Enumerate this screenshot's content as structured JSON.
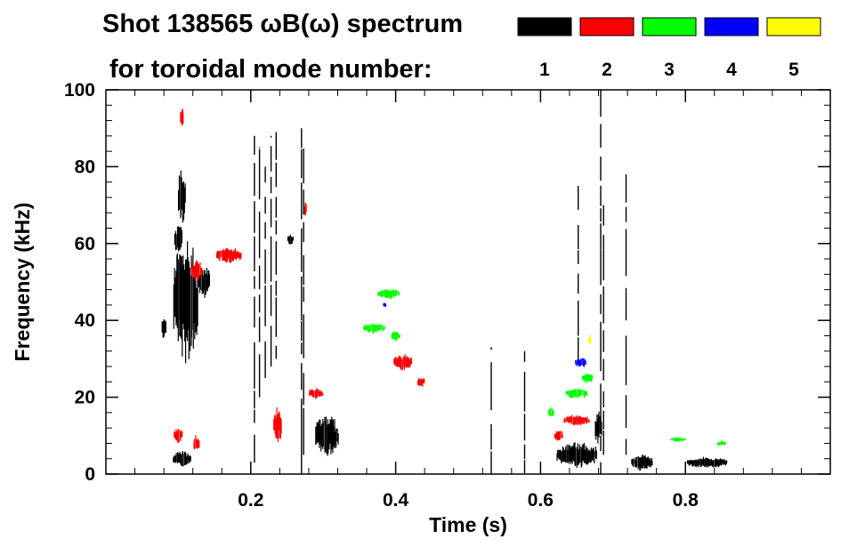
{
  "chart_data": {
    "type": "heatmap",
    "title_line1": "Shot 138565 ωB(ω) spectrum",
    "title_line2": "for toroidal mode number:",
    "xlabel": "Time (s)",
    "ylabel": "Frequency (kHz)",
    "xlim": [
      0.0,
      1.0
    ],
    "ylim": [
      0,
      100
    ],
    "x_ticks": [
      0.2,
      0.4,
      0.6,
      0.8
    ],
    "x_tick_labels": [
      "0.2",
      "0.4",
      "0.6",
      "0.8"
    ],
    "y_ticks": [
      0,
      20,
      40,
      60,
      80,
      100
    ],
    "y_tick_labels": [
      "0",
      "20",
      "40",
      "60",
      "80",
      "100"
    ],
    "grid": false,
    "legend_position": "top-right",
    "modes": [
      {
        "n": "1",
        "color": "#000000"
      },
      {
        "n": "2",
        "color": "#ff0000"
      },
      {
        "n": "3",
        "color": "#00ff00"
      },
      {
        "n": "4",
        "color": "#0000ff"
      },
      {
        "n": "5",
        "color": "#ffff00"
      }
    ],
    "blobs": [
      {
        "mode": "1",
        "t": 0.08,
        "f": 38,
        "dt": 0.006,
        "df": 4
      },
      {
        "mode": "1",
        "t": 0.11,
        "f": 45,
        "dt": 0.034,
        "df": 22
      },
      {
        "mode": "1",
        "t": 0.135,
        "f": 50,
        "dt": 0.018,
        "df": 6
      },
      {
        "mode": "1",
        "t": 0.1,
        "f": 61,
        "dt": 0.01,
        "df": 6
      },
      {
        "mode": "1",
        "t": 0.105,
        "f": 72,
        "dt": 0.01,
        "df": 10
      },
      {
        "mode": "1",
        "t": 0.105,
        "f": 4,
        "dt": 0.025,
        "df": 3
      },
      {
        "mode": "1",
        "t": 0.255,
        "f": 61,
        "dt": 0.008,
        "df": 2
      },
      {
        "mode": "1",
        "t": 0.305,
        "f": 10,
        "dt": 0.032,
        "df": 8
      },
      {
        "mode": "1",
        "t": 0.65,
        "f": 5,
        "dt": 0.055,
        "df": 5
      },
      {
        "mode": "1",
        "t": 0.74,
        "f": 3,
        "dt": 0.03,
        "df": 3
      },
      {
        "mode": "1",
        "t": 0.83,
        "f": 3,
        "dt": 0.055,
        "df": 2
      },
      {
        "mode": "1",
        "t": 0.68,
        "f": 12,
        "dt": 0.01,
        "df": 6
      },
      {
        "mode": "2",
        "t": 0.125,
        "f": 53,
        "dt": 0.015,
        "df": 4
      },
      {
        "mode": "2",
        "t": 0.17,
        "f": 57,
        "dt": 0.035,
        "df": 3
      },
      {
        "mode": "2",
        "t": 0.1,
        "f": 10,
        "dt": 0.012,
        "df": 3
      },
      {
        "mode": "2",
        "t": 0.125,
        "f": 8,
        "dt": 0.008,
        "df": 3
      },
      {
        "mode": "2",
        "t": 0.237,
        "f": 13,
        "dt": 0.012,
        "df": 7
      },
      {
        "mode": "2",
        "t": 0.275,
        "f": 69,
        "dt": 0.002,
        "df": 3
      },
      {
        "mode": "2",
        "t": 0.29,
        "f": 21,
        "dt": 0.02,
        "df": 2
      },
      {
        "mode": "2",
        "t": 0.41,
        "f": 29,
        "dt": 0.025,
        "df": 3
      },
      {
        "mode": "2",
        "t": 0.435,
        "f": 24,
        "dt": 0.01,
        "df": 2
      },
      {
        "mode": "2",
        "t": 0.65,
        "f": 14,
        "dt": 0.035,
        "df": 2
      },
      {
        "mode": "2",
        "t": 0.625,
        "f": 10,
        "dt": 0.012,
        "df": 2
      },
      {
        "mode": "2",
        "t": 0.105,
        "f": 93,
        "dt": 0.005,
        "df": 4
      },
      {
        "mode": "3",
        "t": 0.37,
        "f": 38,
        "dt": 0.03,
        "df": 2
      },
      {
        "mode": "3",
        "t": 0.4,
        "f": 36,
        "dt": 0.012,
        "df": 2
      },
      {
        "mode": "3",
        "t": 0.39,
        "f": 47,
        "dt": 0.03,
        "df": 2
      },
      {
        "mode": "3",
        "t": 0.65,
        "f": 21,
        "dt": 0.03,
        "df": 2
      },
      {
        "mode": "3",
        "t": 0.665,
        "f": 25,
        "dt": 0.015,
        "df": 2
      },
      {
        "mode": "3",
        "t": 0.615,
        "f": 16,
        "dt": 0.008,
        "df": 2
      },
      {
        "mode": "3",
        "t": 0.79,
        "f": 9,
        "dt": 0.02,
        "df": 1
      },
      {
        "mode": "3",
        "t": 0.85,
        "f": 8,
        "dt": 0.012,
        "df": 1
      },
      {
        "mode": "4",
        "t": 0.655,
        "f": 29,
        "dt": 0.015,
        "df": 2
      },
      {
        "mode": "4",
        "t": 0.385,
        "f": 44,
        "dt": 0.004,
        "df": 1
      },
      {
        "mode": "5",
        "t": 0.668,
        "f": 35,
        "dt": 0.004,
        "df": 2
      }
    ],
    "bursts": [
      {
        "mode": "1",
        "t": 0.205,
        "f0": 3,
        "f1": 88
      },
      {
        "mode": "1",
        "t": 0.212,
        "f0": 20,
        "f1": 85
      },
      {
        "mode": "1",
        "t": 0.22,
        "f0": 25,
        "f1": 80
      },
      {
        "mode": "1",
        "t": 0.228,
        "f0": 28,
        "f1": 88
      },
      {
        "mode": "1",
        "t": 0.235,
        "f0": 30,
        "f1": 89
      },
      {
        "mode": "1",
        "t": 0.27,
        "f0": 0,
        "f1": 90
      },
      {
        "mode": "1",
        "t": 0.273,
        "f0": 5,
        "f1": 85
      },
      {
        "mode": "1",
        "t": 0.532,
        "f0": 0,
        "f1": 33
      },
      {
        "mode": "1",
        "t": 0.578,
        "f0": 0,
        "f1": 32
      },
      {
        "mode": "1",
        "t": 0.683,
        "f0": 0,
        "f1": 100
      },
      {
        "mode": "1",
        "t": 0.687,
        "f0": 5,
        "f1": 70
      },
      {
        "mode": "1",
        "t": 0.718,
        "f0": 5,
        "f1": 78
      },
      {
        "mode": "1",
        "t": 0.652,
        "f0": 30,
        "f1": 75
      }
    ]
  }
}
